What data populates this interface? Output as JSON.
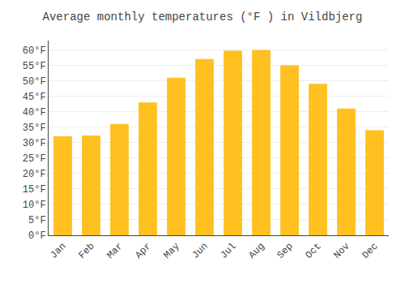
{
  "chart_data": {
    "type": "bar",
    "title": "Average monthly temperatures (°F ) in Vildbjerg",
    "categories": [
      "Jan",
      "Feb",
      "Mar",
      "Apr",
      "May",
      "Jun",
      "Jul",
      "Aug",
      "Sep",
      "Oct",
      "Nov",
      "Dec"
    ],
    "values": [
      32.0,
      32.3,
      36.0,
      43.0,
      51.0,
      57.0,
      59.7,
      59.9,
      55.0,
      49.0,
      41.0,
      34.0
    ],
    "color": "#FFC020",
    "ylim": [
      0,
      63
    ],
    "yticks": [
      {
        "value": 0,
        "label": "0°F"
      },
      {
        "value": 5,
        "label": "5°F"
      },
      {
        "value": 10,
        "label": "10°F"
      },
      {
        "value": 15,
        "label": "15°F"
      },
      {
        "value": 20,
        "label": "20°F"
      },
      {
        "value": 25,
        "label": "25°F"
      },
      {
        "value": 30,
        "label": "30°F"
      },
      {
        "value": 35,
        "label": "35°F"
      },
      {
        "value": 40,
        "label": "40°F"
      },
      {
        "value": 45,
        "label": "45°F"
      },
      {
        "value": 50,
        "label": "50°F"
      },
      {
        "value": 55,
        "label": "55°F"
      },
      {
        "value": 60,
        "label": "60°F"
      }
    ],
    "grid": true
  }
}
